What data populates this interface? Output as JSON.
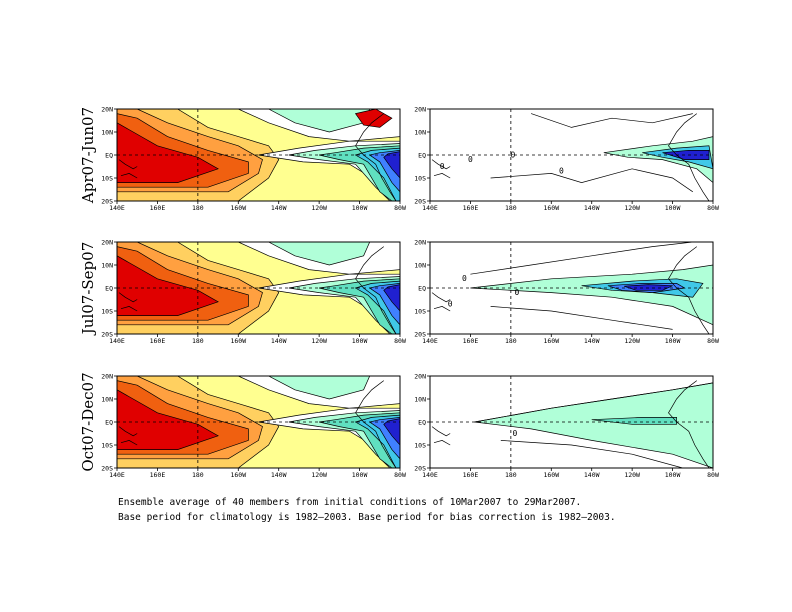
{
  "figure": {
    "caption_line1": "Ensemble average of 40 members from initial conditions of 10Mar2007 to 29Mar2007.",
    "caption_line2": "Base period for climatology is 1982—2003. Base period for bias correction is 1982—2003."
  },
  "chart_data": [
    {
      "type": "heatmap",
      "row_label": "Apr07-Jun07",
      "xlabels": [
        "140E",
        "160E",
        "180",
        "160W",
        "140W",
        "120W",
        "100W",
        "80W"
      ],
      "ylabels": [
        "20S",
        "10S",
        "EQ",
        "10N",
        "20N"
      ],
      "xlim": [
        140,
        280
      ],
      "ylim": [
        -20,
        20
      ],
      "panel": "left",
      "colors": [
        "#e00000",
        "#f06010",
        "#ffa040",
        "#ffd060",
        "#ffff90",
        "#ffffff",
        "#b0ffd8",
        "#60e0c0",
        "#40c8e8",
        "#4080ff",
        "#2020d0"
      ]
    },
    {
      "type": "heatmap",
      "row_label": "Apr07-Jun07",
      "xlabels": [
        "140E",
        "160E",
        "180",
        "160W",
        "140W",
        "120W",
        "100W",
        "80W"
      ],
      "ylabels": [
        "20S",
        "10S",
        "EQ",
        "10N",
        "20N"
      ],
      "xlim": [
        140,
        280
      ],
      "ylim": [
        -20,
        20
      ],
      "panel": "right",
      "contour_labels": [
        "0",
        "0",
        "0",
        "0"
      ]
    },
    {
      "type": "heatmap",
      "row_label": "Jul07-Sep07",
      "xlabels": [
        "140E",
        "160E",
        "180",
        "160W",
        "140W",
        "120W",
        "100W",
        "80W"
      ],
      "ylabels": [
        "20S",
        "10S",
        "EQ",
        "10N",
        "20N"
      ],
      "xlim": [
        140,
        280
      ],
      "ylim": [
        -20,
        20
      ],
      "panel": "left"
    },
    {
      "type": "heatmap",
      "row_label": "Jul07-Sep07",
      "xlabels": [
        "140E",
        "160E",
        "180",
        "160W",
        "140W",
        "120W",
        "100W",
        "80W"
      ],
      "ylabels": [
        "20S",
        "10S",
        "EQ",
        "10N",
        "20N"
      ],
      "xlim": [
        140,
        280
      ],
      "ylim": [
        -20,
        20
      ],
      "panel": "right",
      "contour_labels": [
        "0",
        "0",
        "0"
      ]
    },
    {
      "type": "heatmap",
      "row_label": "Oct07-Dec07",
      "xlabels": [
        "140E",
        "160E",
        "180",
        "160W",
        "140W",
        "120W",
        "100W",
        "80W"
      ],
      "ylabels": [
        "20S",
        "10S",
        "EQ",
        "10N",
        "20N"
      ],
      "xlim": [
        140,
        280
      ],
      "ylim": [
        -20,
        20
      ],
      "panel": "left"
    },
    {
      "type": "heatmap",
      "row_label": "Oct07-Dec07",
      "xlabels": [
        "140E",
        "160E",
        "180",
        "160W",
        "140W",
        "120W",
        "100W",
        "80W"
      ],
      "ylabels": [
        "20S",
        "10S",
        "EQ",
        "10N",
        "20N"
      ],
      "xlim": [
        140,
        280
      ],
      "ylim": [
        -20,
        20
      ],
      "panel": "right",
      "contour_labels": [
        "0"
      ]
    }
  ]
}
